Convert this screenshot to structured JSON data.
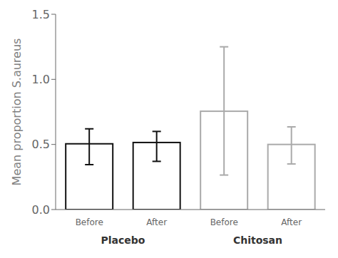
{
  "chart_data": {
    "type": "bar",
    "categories": [
      "Before",
      "After",
      "Before",
      "After"
    ],
    "values": [
      0.505,
      0.515,
      0.755,
      0.5
    ],
    "ci_lower": [
      0.345,
      0.37,
      0.265,
      0.35
    ],
    "ci_upper": [
      0.62,
      0.6,
      1.25,
      0.635
    ],
    "colors": [
      "#111111",
      "#111111",
      "#aaaaaa",
      "#aaaaaa"
    ],
    "ylabel": "Mean proportion S.aureus",
    "ylim": [
      0,
      1.5
    ],
    "yticks": [
      {
        "value": 0,
        "label": "0.0"
      },
      0.5,
      {
        "value": 1,
        "label": "1.0"
      },
      1.5
    ],
    "annotations": [
      "Placebo",
      "Chitosan"
    ],
    "grid": false
  }
}
